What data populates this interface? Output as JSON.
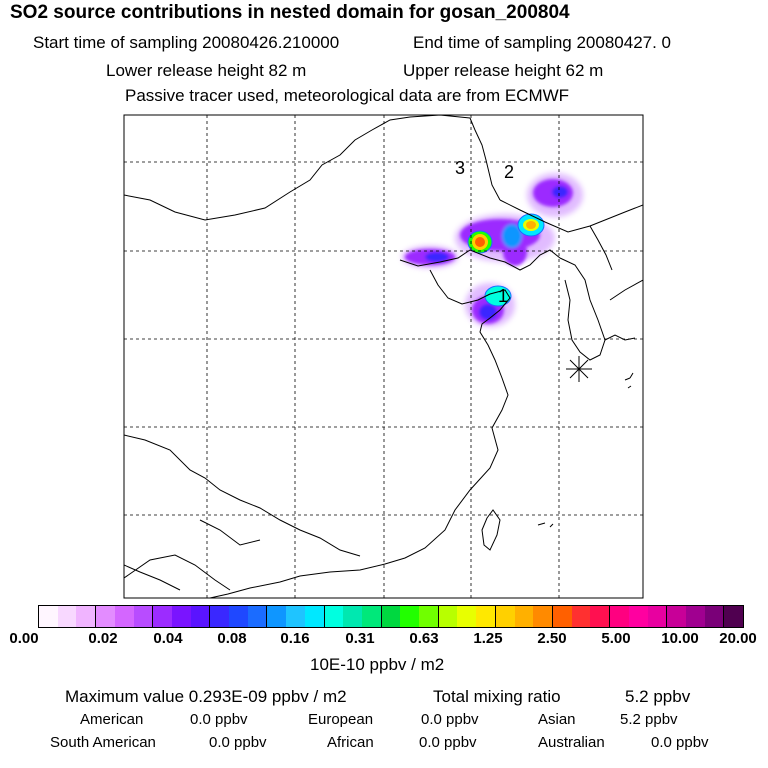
{
  "header": {
    "title": "SO2 source contributions in nested domain for gosan_200804",
    "start_sampling": "Start time of sampling 20080426.210000",
    "end_sampling": "End time of sampling 20080427.     0",
    "lower_release": "Lower release height   82 m",
    "upper_release": "Upper release height   62 m",
    "tracer_note": "Passive tracer used, meteorological data are from ECMWF"
  },
  "map": {
    "source_labels": [
      "1",
      "2",
      "3"
    ],
    "receptor_marker": "asterisk-marker"
  },
  "legend": {
    "colors": [
      "#fff6ff",
      "#f8d8ff",
      "#f0b4ff",
      "#e38cff",
      "#d466ff",
      "#b84cff",
      "#9c2cff",
      "#7a14ff",
      "#5a14ff",
      "#3a28ff",
      "#1f48ff",
      "#1b6cff",
      "#0f96ff",
      "#1fc4ff",
      "#00e8ff",
      "#00ffe0",
      "#00e8b0",
      "#00e87a",
      "#00d840",
      "#22ff00",
      "#70ff00",
      "#b8ff00",
      "#e8ff00",
      "#ffe800",
      "#ffd000",
      "#ffb000",
      "#ff8a00",
      "#ff6000",
      "#ff3030",
      "#ff1050",
      "#ff0080",
      "#ff00a0",
      "#e800a0",
      "#c80098",
      "#a00090",
      "#7a0078",
      "#500050"
    ],
    "tick_labels": [
      "0.00",
      "0.02",
      "0.04",
      "0.08",
      "0.16",
      "0.31",
      "0.63",
      "1.25",
      "2.50",
      "5.00",
      "10.00",
      "20.00"
    ],
    "units": "10E-10 ppbv / m2"
  },
  "summary": {
    "maximum": "Maximum value  0.293E-09 ppbv / m2",
    "total_label": "Total mixing ratio",
    "total_value": "5.2 ppbv",
    "regions": [
      {
        "name": "American",
        "value": "0.0 ppbv"
      },
      {
        "name": "European",
        "value": "0.0 ppbv"
      },
      {
        "name": "Asian",
        "value": "5.2 ppbv"
      },
      {
        "name": "South American",
        "value": "0.0 ppbv"
      },
      {
        "name": "African",
        "value": "0.0 ppbv"
      },
      {
        "name": "Australian",
        "value": "0.0 ppbv"
      }
    ]
  }
}
